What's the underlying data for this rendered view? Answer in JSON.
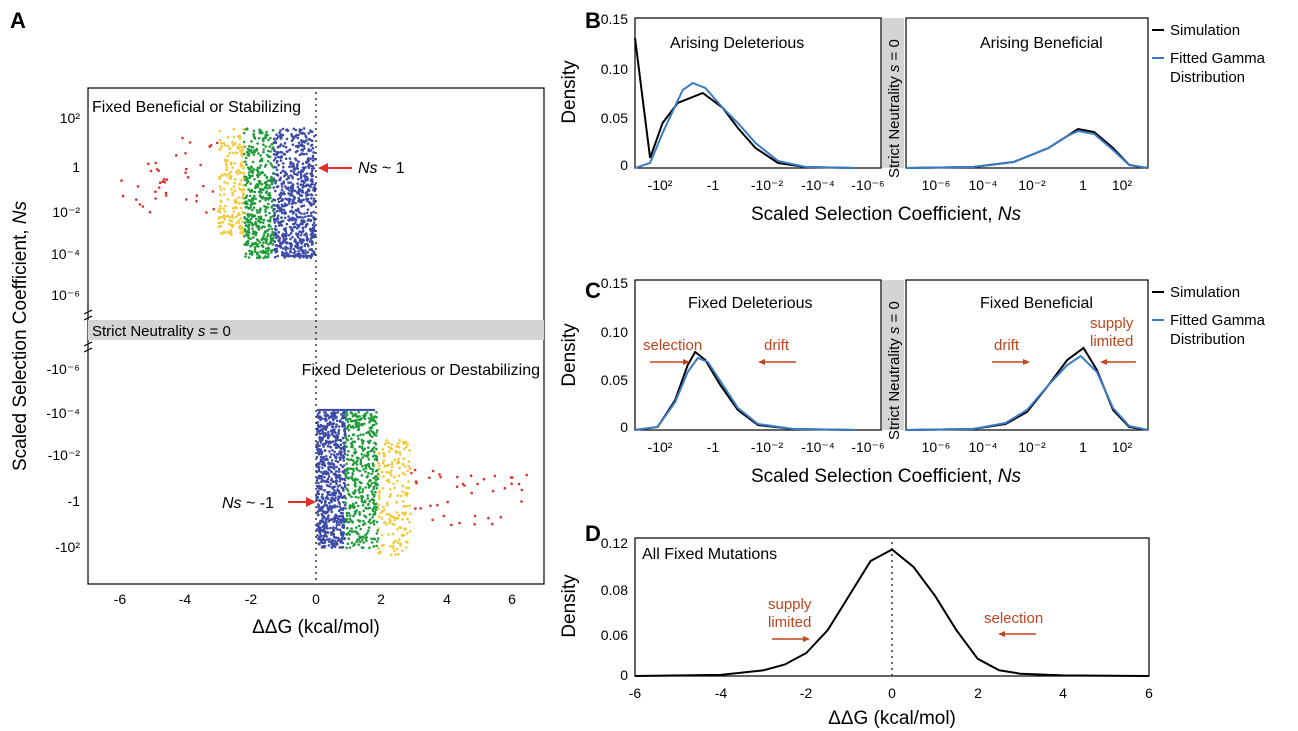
{
  "chart_data": [
    {
      "panel": "A",
      "type": "scatter",
      "xlabel": "ΔΔG (kcal/mol)",
      "ylabel": "Scaled Selection Coefficient, Ns",
      "xlim": [
        -7,
        7
      ],
      "x_ticks": [
        "-6",
        "-4",
        "-2",
        "0",
        "2",
        "4",
        "6"
      ],
      "y_ticks_top": [
        "10²",
        "1",
        "10⁻²",
        "10⁻⁴",
        "10⁻⁶"
      ],
      "y_ticks_bottom": [
        "-10⁻⁶",
        "-10⁻⁴",
        "-10⁻²",
        "-1",
        "-10²"
      ],
      "band_label": "Strict Neutrality s = 0",
      "top_title": "Fixed Beneficial or Stabilizing",
      "bottom_title": "Fixed Deleterious or Destabilizing",
      "annotation_top": "Ns ~ 1",
      "annotation_bottom": "Ns ~ -1",
      "colors": {
        "blue": "#3d4ba8",
        "green": "#1f9b3a",
        "yellow": "#f2c934",
        "red": "#e0302a"
      }
    },
    {
      "panel": "B",
      "type": "line",
      "xlabel": "Scaled Selection Coefficient, Ns",
      "ylabel": "Density",
      "ylim": [
        0,
        0.15
      ],
      "y_ticks": [
        "0.15",
        "0.10",
        "0.05",
        "0"
      ],
      "left_title": "Arising Deleterious",
      "right_title": "Arising Beneficial",
      "band_label": "Strict Neutrality s = 0",
      "x_ticks_left": [
        "-10²",
        "-1",
        "-10⁻²",
        "-10⁻⁴",
        "-10⁻⁶"
      ],
      "x_ticks_right": [
        "10⁻⁶",
        "10⁻⁴",
        "10⁻²",
        "1",
        "10²"
      ],
      "legend": [
        "Simulation",
        "Fitted Gamma Distribution"
      ],
      "series": [
        {
          "name": "Simulation",
          "color": "#000000",
          "left": [
            [
              -3.3,
              0.13
            ],
            [
              -2.7,
              0.01
            ],
            [
              -2.2,
              0.045
            ],
            [
              -1.6,
              0.065
            ],
            [
              -0.6,
              0.075
            ],
            [
              0.2,
              0.06
            ],
            [
              0.8,
              0.04
            ],
            [
              1.5,
              0.02
            ],
            [
              2.4,
              0.005
            ],
            [
              3.5,
              0.001
            ],
            [
              5.5,
              0
            ]
          ],
          "right": [
            [
              -6.5,
              0
            ],
            [
              -4,
              0.001
            ],
            [
              -2.5,
              0.006
            ],
            [
              -1.2,
              0.02
            ],
            [
              -0.5,
              0.032
            ],
            [
              -0.1,
              0.039
            ],
            [
              0.5,
              0.036
            ],
            [
              1.2,
              0.02
            ],
            [
              1.8,
              0.003
            ],
            [
              2.5,
              0
            ]
          ]
        },
        {
          "name": "Fitted Gamma Distribution",
          "color": "#3a7bc8",
          "left": [
            [
              -3.3,
              0
            ],
            [
              -2.7,
              0.005
            ],
            [
              -2.2,
              0.035
            ],
            [
              -1.4,
              0.078
            ],
            [
              -1.0,
              0.085
            ],
            [
              -0.5,
              0.08
            ],
            [
              0.2,
              0.06
            ],
            [
              0.8,
              0.045
            ],
            [
              1.5,
              0.025
            ],
            [
              2.4,
              0.007
            ],
            [
              3.5,
              0.001
            ],
            [
              5.5,
              0
            ]
          ],
          "right": [
            [
              -6.5,
              0
            ],
            [
              -4,
              0.001
            ],
            [
              -2.5,
              0.006
            ],
            [
              -1.2,
              0.02
            ],
            [
              -0.5,
              0.032
            ],
            [
              -0.1,
              0.037
            ],
            [
              0.5,
              0.034
            ],
            [
              1.2,
              0.018
            ],
            [
              1.8,
              0.003
            ],
            [
              2.5,
              0
            ]
          ]
        }
      ]
    },
    {
      "panel": "C",
      "type": "line",
      "xlabel": "Scaled Selection Coefficient, Ns",
      "ylabel": "Density",
      "ylim": [
        0,
        0.15
      ],
      "y_ticks": [
        "0.15",
        "0.10",
        "0.05",
        "0"
      ],
      "left_title": "Fixed Deleterious",
      "right_title": "Fixed Beneficial",
      "band_label": "Strict Neutrality s = 0",
      "x_ticks_left": [
        "-10²",
        "-1",
        "-10⁻²",
        "-10⁻⁴",
        "-10⁻⁶"
      ],
      "x_ticks_right": [
        "10⁻⁶",
        "10⁻⁴",
        "10⁻²",
        "1",
        "10²"
      ],
      "annotations": [
        "selection",
        "drift",
        "drift",
        "supply",
        "limited"
      ],
      "legend": [
        "Simulation",
        "Fitted Gamma Distribution"
      ],
      "series": [
        {
          "name": "Simulation",
          "color": "#000000",
          "left": [
            [
              -3.3,
              0
            ],
            [
              -2.4,
              0.003
            ],
            [
              -1.7,
              0.03
            ],
            [
              -1.2,
              0.065
            ],
            [
              -0.9,
              0.078
            ],
            [
              -0.5,
              0.07
            ],
            [
              0.1,
              0.045
            ],
            [
              0.8,
              0.02
            ],
            [
              1.6,
              0.005
            ],
            [
              3,
              0.001
            ],
            [
              5.5,
              0
            ]
          ],
          "right": [
            [
              -6.5,
              0
            ],
            [
              -4,
              0.001
            ],
            [
              -2.8,
              0.006
            ],
            [
              -2,
              0.018
            ],
            [
              -1.2,
              0.045
            ],
            [
              -0.5,
              0.07
            ],
            [
              0.1,
              0.082
            ],
            [
              0.6,
              0.06
            ],
            [
              1.2,
              0.02
            ],
            [
              1.8,
              0.003
            ],
            [
              2.5,
              0
            ]
          ]
        },
        {
          "name": "Fitted Gamma Distribution",
          "color": "#3a7bc8",
          "left": [
            [
              -3.3,
              0
            ],
            [
              -2.4,
              0.003
            ],
            [
              -1.7,
              0.028
            ],
            [
              -1.2,
              0.058
            ],
            [
              -0.8,
              0.072
            ],
            [
              -0.4,
              0.068
            ],
            [
              0.2,
              0.045
            ],
            [
              0.8,
              0.022
            ],
            [
              1.6,
              0.006
            ],
            [
              3,
              0.001
            ],
            [
              5.5,
              0
            ]
          ],
          "right": [
            [
              -6.5,
              0
            ],
            [
              -4,
              0.001
            ],
            [
              -2.8,
              0.007
            ],
            [
              -2,
              0.02
            ],
            [
              -1.2,
              0.045
            ],
            [
              -0.5,
              0.065
            ],
            [
              0.0,
              0.074
            ],
            [
              0.6,
              0.058
            ],
            [
              1.2,
              0.022
            ],
            [
              1.8,
              0.004
            ],
            [
              2.5,
              0
            ]
          ]
        }
      ]
    },
    {
      "panel": "D",
      "type": "line",
      "title": "All Fixed Mutations",
      "xlabel": "ΔΔG (kcal/mol)",
      "ylabel": "Density",
      "xlim": [
        -6,
        6
      ],
      "ylim": [
        0,
        0.12
      ],
      "x_ticks": [
        "-6",
        "-4",
        "-2",
        "0",
        "2",
        "4",
        "6"
      ],
      "y_ticks": [
        "0.12",
        "0.08",
        "0.06",
        "0"
      ],
      "annotations": [
        "supply",
        "limited",
        "selection"
      ],
      "series": [
        {
          "name": "",
          "color": "#000000",
          "points": [
            [
              -6,
              0
            ],
            [
              -4,
              0.001
            ],
            [
              -3,
              0.005
            ],
            [
              -2.5,
              0.01
            ],
            [
              -2,
              0.02
            ],
            [
              -1.5,
              0.04
            ],
            [
              -1,
              0.07
            ],
            [
              -0.5,
              0.1
            ],
            [
              0,
              0.11
            ],
            [
              0.5,
              0.095
            ],
            [
              1,
              0.07
            ],
            [
              1.5,
              0.04
            ],
            [
              2,
              0.015
            ],
            [
              2.5,
              0.005
            ],
            [
              3,
              0.002
            ],
            [
              4,
              0.0005
            ],
            [
              6,
              0
            ]
          ]
        }
      ]
    }
  ]
}
